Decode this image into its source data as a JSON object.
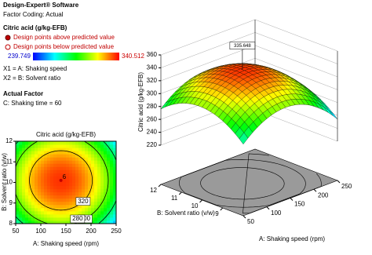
{
  "header": {
    "software": "Design-Expert® Software",
    "coding": "Factor Coding: Actual",
    "response": "Citric acid (g/kg-EFB)",
    "above": "Design points above predicted value",
    "below": "Design points below predicted value",
    "min": 239.749,
    "max": 340.512,
    "x1": "X1 = A: Shaking speed",
    "x2": "X2 = B: Solvent ratio",
    "actual": "Actual Factor",
    "c": "C: Shaking time = 60"
  },
  "chart_data": [
    {
      "type": "contour",
      "title": "Citric acid (g/kg-EFB)",
      "x_label": "A: Shaking speed (rpm)",
      "y_label": "B: Solvent ratio (v/w)",
      "xlim": [
        50,
        250
      ],
      "xticks": [
        50,
        100,
        150,
        200,
        250
      ],
      "ylim": [
        8,
        12
      ],
      "yticks": [
        8,
        9,
        10,
        11,
        12
      ],
      "levels": [
        320,
        300,
        280
      ],
      "design_point": {
        "x": 140,
        "y": 10.1,
        "label": "6"
      }
    },
    {
      "type": "surface3d",
      "z_label": "Citric acid (g/kg-EFB)",
      "x_label": "A: Shaking speed (rpm)",
      "y_label": "B: Solvent ratio (v/w)",
      "xlim": [
        50,
        250
      ],
      "xticks": [
        50,
        100,
        150,
        200,
        250
      ],
      "ylim": [
        8,
        12
      ],
      "yticks": [
        9,
        10,
        11,
        12
      ],
      "zlim": [
        220,
        360
      ],
      "zticks": [
        220,
        240,
        260,
        280,
        300,
        320,
        340,
        360
      ],
      "peak": 335.648
    }
  ]
}
